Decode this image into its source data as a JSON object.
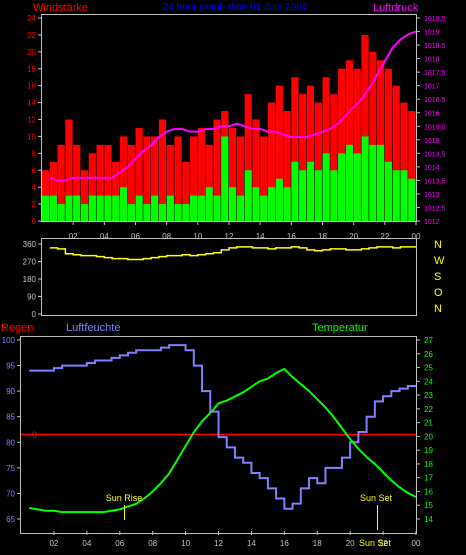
{
  "header": {
    "left_label": "Windstärke",
    "title": "24 hour graph date  01 Juni 2004",
    "right_label": "Luftdruck"
  },
  "colors": {
    "background": "#000000",
    "frame": "#c0c0c0",
    "wind_gust": "#ff0000",
    "wind_avg": "#00ff00",
    "pressure": "#ff00ff",
    "direction": "#ffff00",
    "rain": "#ff0000",
    "humidity": "#8080ff",
    "temperature": "#00ff00",
    "left_axis_text": "#ff0000",
    "right_axis_text": "#ff00ff",
    "compass_text": "#ffff00",
    "time_text": "#c0c0c0",
    "title_text": "#0000ff"
  },
  "time_axis": {
    "ticks": [
      "02",
      "04",
      "06",
      "08",
      "10",
      "12",
      "14",
      "16",
      "18",
      "20",
      "22",
      "00"
    ]
  },
  "compass": [
    "N",
    "W",
    "S",
    "O",
    "N"
  ],
  "chart_data": [
    {
      "id": "wind",
      "type": "bar",
      "title": "",
      "left_axis": {
        "label": "Windstärke",
        "ticks": [
          "24",
          "22",
          "20",
          "18",
          "16",
          "14",
          "12",
          "10",
          "8",
          "6",
          "4",
          "2",
          "0"
        ],
        "ylim": [
          0,
          24
        ]
      },
      "right_axis": {
        "label": "Luftdruck",
        "ticks": [
          "1019.5",
          "1019",
          "1018.5",
          "1018",
          "1017.5",
          "1017",
          "1016.5",
          "1016",
          "1015.5",
          "1015",
          "1014.5",
          "1014",
          "1013.5",
          "1013",
          "1012.5",
          "1012"
        ],
        "ylim": [
          1012,
          1019.5
        ]
      },
      "x": [
        "00:30",
        "01:00",
        "01:30",
        "02:00",
        "02:30",
        "03:00",
        "03:30",
        "04:00",
        "04:30",
        "05:00",
        "05:30",
        "06:00",
        "06:30",
        "07:00",
        "07:30",
        "08:00",
        "08:30",
        "09:00",
        "09:30",
        "10:00",
        "10:30",
        "11:00",
        "11:30",
        "12:00",
        "12:30",
        "13:00",
        "13:30",
        "14:00",
        "14:30",
        "15:00",
        "15:30",
        "16:00",
        "16:30",
        "17:00",
        "17:30",
        "18:00",
        "18:30",
        "19:00",
        "19:30",
        "20:00",
        "20:30",
        "21:00",
        "21:30",
        "22:00",
        "22:30",
        "23:00",
        "23:30",
        "00:00"
      ],
      "series": [
        {
          "name": "gust",
          "values": [
            6,
            7,
            9,
            12,
            9,
            6,
            8,
            9,
            9,
            7,
            10,
            9,
            11,
            10,
            10,
            12,
            9,
            10,
            7,
            10,
            11,
            9,
            12,
            13,
            11,
            10,
            15,
            12,
            10,
            14,
            16,
            13,
            17,
            15,
            16,
            14,
            17,
            15,
            18,
            19,
            18,
            22,
            20,
            19,
            18,
            16,
            14,
            13
          ]
        },
        {
          "name": "average",
          "values": [
            3,
            3,
            2,
            3,
            3,
            2,
            3,
            3,
            3,
            3,
            4,
            2,
            3,
            2,
            3,
            2,
            3,
            2,
            2,
            3,
            3,
            4,
            3,
            10,
            4,
            3,
            6,
            4,
            3,
            4,
            5,
            4,
            7,
            6,
            7,
            6,
            8,
            6,
            8,
            9,
            8,
            10,
            9,
            9,
            7,
            6,
            6,
            5
          ]
        },
        {
          "name": "Luftdruck",
          "values": [
            1013.6,
            1013.5,
            1013.5,
            1013.6,
            1013.6,
            1013.6,
            1013.6,
            1013.6,
            1013.6,
            1013.8,
            1014.0,
            1014.3,
            1014.6,
            1014.8,
            1015.1,
            1015.3,
            1015.4,
            1015.4,
            1015.3,
            1015.3,
            1015.4,
            1015.4,
            1015.5,
            1015.5,
            1015.6,
            1015.5,
            1015.4,
            1015.4,
            1015.3,
            1015.3,
            1015.2,
            1015.1,
            1015.1,
            1015.1,
            1015.2,
            1015.3,
            1015.4,
            1015.6,
            1015.9,
            1016.2,
            1016.5,
            1016.9,
            1017.4,
            1017.9,
            1018.4,
            1018.7,
            1018.9,
            1019.0
          ]
        }
      ]
    },
    {
      "id": "direction",
      "type": "line",
      "title": "",
      "left_axis": {
        "ticks": [
          "360",
          "270",
          "180",
          "90",
          "0"
        ],
        "ylim": [
          0,
          360
        ]
      },
      "x": [
        "00:30",
        "01:00",
        "01:30",
        "02:00",
        "02:30",
        "03:00",
        "03:30",
        "04:00",
        "04:30",
        "05:00",
        "05:30",
        "06:00",
        "06:30",
        "07:00",
        "07:30",
        "08:00",
        "08:30",
        "09:00",
        "09:30",
        "10:00",
        "10:30",
        "11:00",
        "11:30",
        "12:00",
        "12:30",
        "13:00",
        "13:30",
        "14:00",
        "14:30",
        "15:00",
        "15:30",
        "16:00",
        "16:30",
        "17:00",
        "17:30",
        "18:00",
        "18:30",
        "19:00",
        "19:30",
        "20:00",
        "20:30",
        "21:00",
        "21:30",
        "22:00",
        "22:30",
        "23:00",
        "23:30",
        "00:00"
      ],
      "series": [
        {
          "name": "direction",
          "values": [
            340,
            335,
            310,
            305,
            300,
            300,
            295,
            290,
            285,
            285,
            280,
            280,
            285,
            290,
            295,
            300,
            300,
            305,
            300,
            305,
            310,
            315,
            330,
            340,
            345,
            345,
            340,
            340,
            335,
            340,
            340,
            345,
            340,
            330,
            325,
            330,
            335,
            335,
            330,
            330,
            335,
            340,
            345,
            345,
            340,
            345,
            345,
            345
          ]
        }
      ]
    },
    {
      "id": "climate",
      "type": "line",
      "title": "",
      "labels": {
        "rain": "Regen",
        "humidity": "Luftfeuchte",
        "temperature": "Temperatur"
      },
      "left_axis": {
        "ticks": [
          "100",
          "95",
          "90",
          "85",
          "80",
          "75",
          "70",
          "65"
        ],
        "ylim": [
          65,
          100
        ]
      },
      "rain_axis": {
        "ticks": [
          "0"
        ],
        "value": 0
      },
      "right_axis": {
        "ticks": [
          "27",
          "26",
          "25",
          "24",
          "23",
          "22",
          "21",
          "20",
          "19",
          "18",
          "17",
          "16",
          "15",
          "14"
        ],
        "ylim": [
          14,
          27
        ]
      },
      "annotations": {
        "sunrise": "Sun Rise",
        "sunset": "Sun Set",
        "sunset_bottom": "Sun Set"
      },
      "x": [
        "00:30",
        "01:00",
        "01:30",
        "02:00",
        "02:30",
        "03:00",
        "03:30",
        "04:00",
        "04:30",
        "05:00",
        "05:30",
        "06:00",
        "06:30",
        "07:00",
        "07:30",
        "08:00",
        "08:30",
        "09:00",
        "09:30",
        "10:00",
        "10:30",
        "11:00",
        "11:30",
        "12:00",
        "12:30",
        "13:00",
        "13:30",
        "14:00",
        "14:30",
        "15:00",
        "15:30",
        "16:00",
        "16:30",
        "17:00",
        "17:30",
        "18:00",
        "18:30",
        "19:00",
        "19:30",
        "20:00",
        "20:30",
        "21:00",
        "21:30",
        "22:00",
        "22:30",
        "23:00",
        "23:30",
        "00:00"
      ],
      "series": [
        {
          "name": "Luftfeuchte",
          "values": [
            94,
            94,
            94,
            94.5,
            95,
            95,
            95,
            95.5,
            96,
            96,
            96.5,
            97,
            97.5,
            98,
            98,
            98,
            98.5,
            99,
            99,
            98,
            95,
            90,
            86,
            81,
            79,
            77,
            76,
            74,
            73,
            71,
            69,
            67,
            68,
            71,
            73,
            72,
            75,
            75,
            77,
            80,
            82,
            85,
            88,
            89,
            90,
            90.5,
            91,
            91
          ]
        },
        {
          "name": "Temperatur",
          "values": [
            14.8,
            14.7,
            14.6,
            14.6,
            14.5,
            14.5,
            14.5,
            14.5,
            14.5,
            14.5,
            14.6,
            14.7,
            14.9,
            15.1,
            15.5,
            16.0,
            16.6,
            17.3,
            18.3,
            19.3,
            20.3,
            21.1,
            21.7,
            22.4,
            22.6,
            22.9,
            23.2,
            23.6,
            24.0,
            24.2,
            24.6,
            24.9,
            24.3,
            23.8,
            23.3,
            22.7,
            22.1,
            21.4,
            20.6,
            19.8,
            19.1,
            18.5,
            18.0,
            17.4,
            16.8,
            16.3,
            15.9,
            15.6
          ]
        }
      ]
    }
  ]
}
